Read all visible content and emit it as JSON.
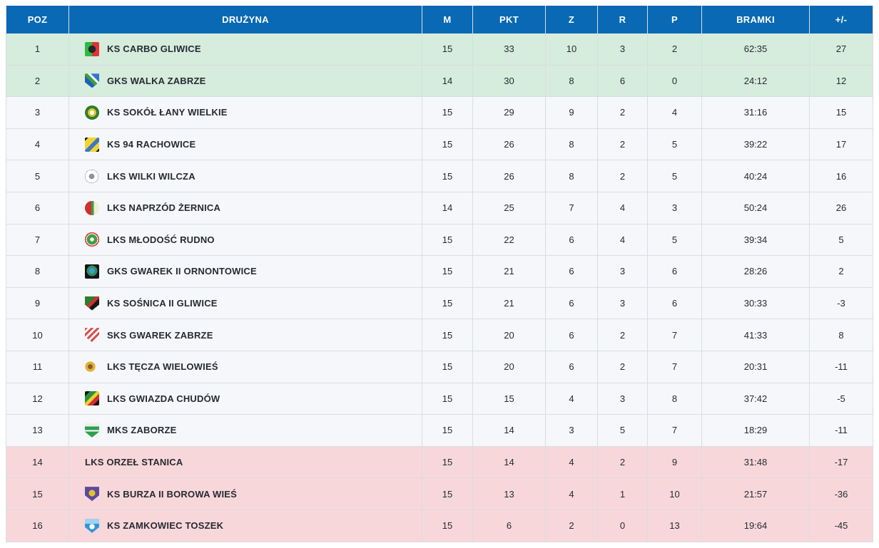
{
  "table": {
    "columns": [
      {
        "key": "poz",
        "label": "POZ"
      },
      {
        "key": "team",
        "label": "DRUŻYNA"
      },
      {
        "key": "m",
        "label": "M"
      },
      {
        "key": "pkt",
        "label": "PKT"
      },
      {
        "key": "z",
        "label": "Z"
      },
      {
        "key": "r",
        "label": "R"
      },
      {
        "key": "p",
        "label": "P"
      },
      {
        "key": "bramki",
        "label": "BRAMKI"
      },
      {
        "key": "diff",
        "label": "+/-"
      }
    ],
    "colors": {
      "header_bg": "#0a69b4",
      "header_text": "#ffffff",
      "promotion_bg": "#d6ecdc",
      "relegation_bg": "#f8d7da",
      "row_bg": "#f6f7fa",
      "border": "#d9dde2",
      "text": "#262b33"
    },
    "rows": [
      {
        "poz": "1",
        "team": "KS CARBO GLIWICE",
        "m": "15",
        "pkt": "33",
        "z": "10",
        "r": "3",
        "p": "2",
        "bramki": "62:35",
        "diff": "27",
        "zone": "promotion",
        "logo": {
          "shape": "square",
          "size": 20,
          "bg": "radial-gradient(circle at 50% 50%, #23272b 0 36%, rgba(0,0,0,0) 38%), linear-gradient(90deg, #2fba3f 0 50%, #e03434 50% 100%)"
        }
      },
      {
        "poz": "2",
        "team": "GKS WALKA ZABRZE",
        "m": "14",
        "pkt": "30",
        "z": "8",
        "r": "6",
        "p": "0",
        "bramki": "24:12",
        "diff": "12",
        "zone": "promotion",
        "logo": {
          "shape": "shield",
          "size": 20,
          "bg": "linear-gradient(225deg, #2f77d0 0 30%, #eef4ee 30% 42%, #3f9e3f 42% 58%, #1f5fb8 58% 100%)"
        }
      },
      {
        "poz": "3",
        "team": "KS SOKÓŁ ŁANY WIELKIE",
        "m": "15",
        "pkt": "29",
        "z": "9",
        "r": "2",
        "p": "4",
        "bramki": "31:16",
        "diff": "15",
        "zone": "normal",
        "logo": {
          "shape": "circle",
          "size": 20,
          "bg": "radial-gradient(circle, #ffffff 0 22%, #e3c32c 22% 42%, #2f7d2f 42% 100%)"
        }
      },
      {
        "poz": "4",
        "team": "KS 94 RACHOWICE",
        "m": "15",
        "pkt": "26",
        "z": "8",
        "r": "2",
        "p": "5",
        "bramki": "39:22",
        "diff": "17",
        "zone": "normal",
        "logo": {
          "shape": "square",
          "size": 20,
          "bg": "linear-gradient(135deg, #141414 0 12%, #f0d432 12% 45%, #3a78c8 45% 65%, #f0d432 65% 88%, #141414 88% 100%)"
        }
      },
      {
        "poz": "5",
        "team": "LKS WILKI WILCZA",
        "m": "15",
        "pkt": "26",
        "z": "8",
        "r": "2",
        "p": "5",
        "bramki": "40:24",
        "diff": "16",
        "zone": "normal",
        "logo": {
          "shape": "circle",
          "size": 19,
          "bg": "radial-gradient(circle, #8d9299 0 28%, #ffffff 28% 68%, #5a5f66 68% 78%, #ffffff 78% 100%)"
        }
      },
      {
        "poz": "6",
        "team": "LKS NAPRZÓD ŻERNICA",
        "m": "14",
        "pkt": "25",
        "z": "7",
        "r": "4",
        "p": "3",
        "bramki": "50:24",
        "diff": "26",
        "zone": "normal",
        "logo": {
          "shape": "circle",
          "size": 20,
          "bg": "linear-gradient(90deg, #cf3030 0 46%, #3f9e3f 46% 62%, #f2ecd8 62% 100%)"
        }
      },
      {
        "poz": "7",
        "team": "LKS MŁODOŚĆ RUDNO",
        "m": "15",
        "pkt": "22",
        "z": "6",
        "r": "4",
        "p": "5",
        "bramki": "39:34",
        "diff": "5",
        "zone": "normal",
        "logo": {
          "shape": "circle",
          "size": 20,
          "bg": "radial-gradient(circle, #ffffff 0 20%, #3f9e3f 20% 52%, #ffffff 52% 60%, #cf3030 60% 100%)"
        }
      },
      {
        "poz": "8",
        "team": "GKS GWAREK II ORNONTOWICE",
        "m": "15",
        "pkt": "21",
        "z": "6",
        "r": "3",
        "p": "6",
        "bramki": "28:26",
        "diff": "2",
        "zone": "normal",
        "logo": {
          "shape": "square",
          "size": 20,
          "bg": "radial-gradient(circle at 50% 45%, #3f9ed6 0 26%, #2f8f5a 26% 50%, #141414 50% 100%)"
        }
      },
      {
        "poz": "9",
        "team": "KS SOŚNICA II GLIWICE",
        "m": "15",
        "pkt": "21",
        "z": "6",
        "r": "3",
        "p": "6",
        "bramki": "30:33",
        "diff": "-3",
        "zone": "normal",
        "logo": {
          "shape": "shield",
          "size": 20,
          "bg": "linear-gradient(135deg, #2f7d2f 0 40%, #cf3030 40% 56%, #17181a 56% 100%)"
        }
      },
      {
        "poz": "10",
        "team": "SKS GWAREK ZABRZE",
        "m": "15",
        "pkt": "20",
        "z": "6",
        "r": "2",
        "p": "7",
        "bramki": "41:33",
        "diff": "8",
        "zone": "normal",
        "logo": {
          "shape": "shield",
          "size": 20,
          "bg": "repeating-linear-gradient(135deg, #d95050 0 3px, #ffffff 3px 6px)"
        }
      },
      {
        "poz": "11",
        "team": "LKS TĘCZA WIELOWIEŚ",
        "m": "15",
        "pkt": "20",
        "z": "6",
        "r": "2",
        "p": "7",
        "bramki": "20:31",
        "diff": "-11",
        "zone": "normal",
        "logo": {
          "shape": "circle",
          "size": 15,
          "bg": "radial-gradient(circle, #8b5a2b 0 32%, #e0b23a 32% 68%, #f4eedd 68% 100%)"
        }
      },
      {
        "poz": "12",
        "team": "LKS GWIAZDA CHUDÓW",
        "m": "15",
        "pkt": "15",
        "z": "4",
        "r": "3",
        "p": "8",
        "bramki": "37:42",
        "diff": "-5",
        "zone": "normal",
        "logo": {
          "shape": "square",
          "size": 20,
          "bg": "linear-gradient(135deg, #141414 0 18%, #2f8f3f 18% 42%, #e8d22e 42% 58%, #cf3030 58% 78%, #141414 78% 100%)"
        }
      },
      {
        "poz": "13",
        "team": "MKS ZABORZE",
        "m": "15",
        "pkt": "14",
        "z": "3",
        "r": "5",
        "p": "7",
        "bramki": "18:29",
        "diff": "-11",
        "zone": "normal",
        "logo": {
          "shape": "shield",
          "size": 20,
          "bg": "linear-gradient(180deg, #e9f2e9 0 22%, #2f9e4f 22% 48%, #ffffff 48% 58%, #2f9e4f 58% 100%)"
        }
      },
      {
        "poz": "14",
        "team": "LKS ORZEŁ STANICA",
        "m": "15",
        "pkt": "14",
        "z": "4",
        "r": "2",
        "p": "9",
        "bramki": "31:48",
        "diff": "-17",
        "zone": "relegation",
        "logo": null
      },
      {
        "poz": "15",
        "team": "KS BURZA II BOROWA WIEŚ",
        "m": "15",
        "pkt": "13",
        "z": "4",
        "r": "1",
        "p": "10",
        "bramki": "21:57",
        "diff": "-36",
        "zone": "relegation",
        "logo": {
          "shape": "shield",
          "size": 20,
          "bg": "radial-gradient(circle at 50% 45%, #e3c32c 0 30%, #5c4a9e 30% 100%)"
        }
      },
      {
        "poz": "16",
        "team": "KS ZAMKOWIEC TOSZEK",
        "m": "15",
        "pkt": "6",
        "z": "2",
        "r": "0",
        "p": "13",
        "bramki": "19:64",
        "diff": "-45",
        "zone": "relegation",
        "logo": {
          "shape": "shield",
          "size": 20,
          "bg": "radial-gradient(circle at 50% 55%, #ffffff 0 24%, rgba(0,0,0,0) 26%), linear-gradient(180deg, #9ed2ef 0 35%, #2e96d9 35% 100%)"
        }
      }
    ]
  }
}
